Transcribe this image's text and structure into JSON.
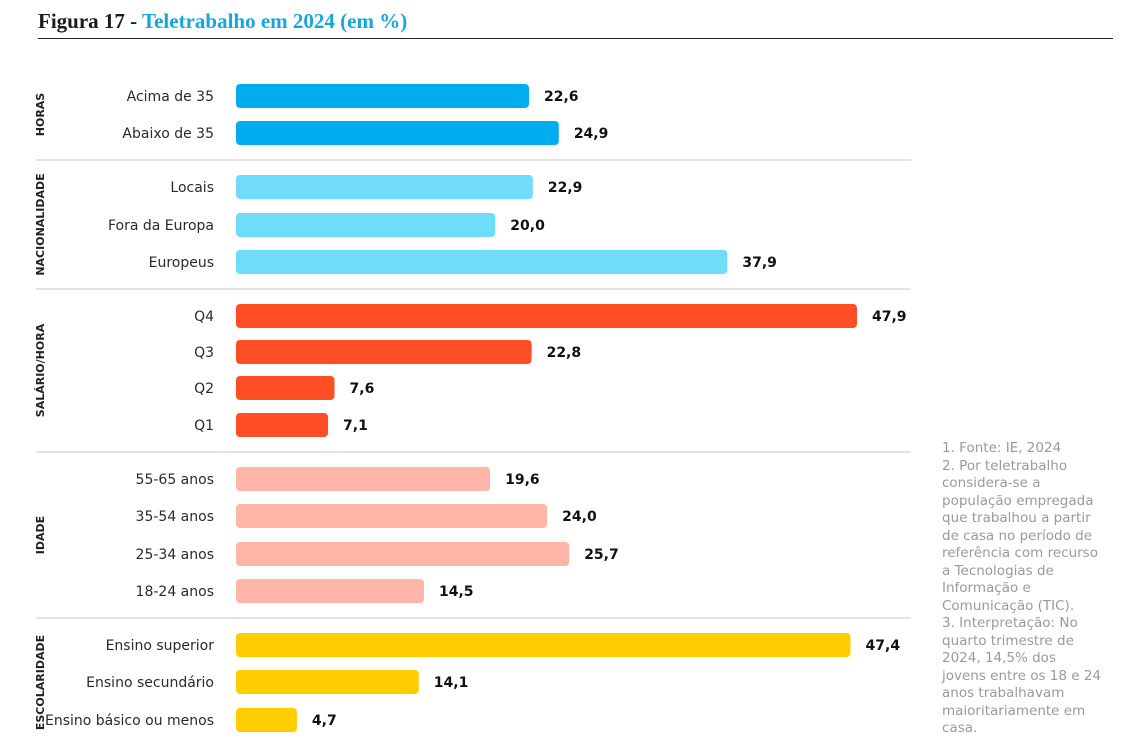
{
  "figure": {
    "number": "Figura 17 - ",
    "title": "Teletrabalho em 2024 (em %)"
  },
  "notes": [
    "1. Fonte: IE, 2024",
    "2. Por teletrabalho considera-se a população empregada que trabalhou a partir de casa no período de referência com recurso a Tecnologias de Informação e Comunicação (TIC).",
    "3. Interpretação: No quarto trimestre de 2024, 14,5% dos jovens entre os 18 e 24 anos trabalhavam maioritariamente em casa."
  ],
  "chart_data": {
    "type": "bar",
    "orientation": "horizontal",
    "xlim": [
      0,
      47.9
    ],
    "grid": false,
    "legend": "none",
    "groups": [
      {
        "name": "HORAS",
        "color": "#00aeef",
        "categories": [
          "Acima de 35",
          "Abaixo de 35"
        ],
        "values": [
          22.6,
          24.9
        ],
        "labels": [
          "22,6",
          "24,9"
        ]
      },
      {
        "name": "NACIONALIDADE",
        "color": "#6fdcfa",
        "categories": [
          "Locais",
          "Fora da Europa",
          "Europeus"
        ],
        "values": [
          22.9,
          20.0,
          37.9
        ],
        "labels": [
          "22,9",
          "20,0",
          "37,9"
        ]
      },
      {
        "name": "SALÁRIO/HORA",
        "color": "#ff4d26",
        "categories": [
          "Q4",
          "Q3",
          "Q2",
          "Q1"
        ],
        "values": [
          47.9,
          22.8,
          7.6,
          7.1
        ],
        "labels": [
          "47,9",
          "22,8",
          "7,6",
          "7,1"
        ]
      },
      {
        "name": "IDADE",
        "color": "#ffb6a8",
        "categories": [
          "55-65 anos",
          "35-54 anos",
          "25-34 anos",
          "18-24 anos"
        ],
        "values": [
          19.6,
          24.0,
          25.7,
          14.5
        ],
        "labels": [
          "19,6",
          "24,0",
          "25,7",
          "14,5"
        ]
      },
      {
        "name": "ESCOLARIDADE",
        "color": "#ffcc00",
        "categories": [
          "Ensino superior",
          "Ensino secundário",
          "Ensino básico ou menos"
        ],
        "values": [
          47.4,
          14.1,
          4.7
        ],
        "labels": [
          "47,4",
          "14,1",
          "4,7"
        ]
      }
    ]
  }
}
